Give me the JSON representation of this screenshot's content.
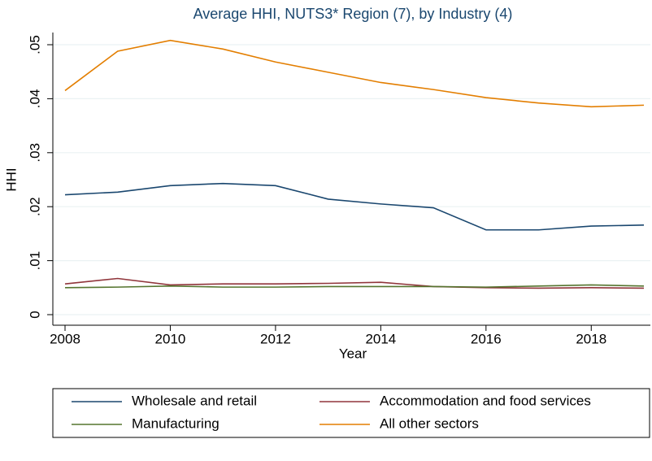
{
  "chart_data": {
    "type": "line",
    "title": "Average HHI, NUTS3* Region (7), by Industry (4)",
    "x_label": "Year",
    "y_label": "HHI",
    "x": [
      2008,
      2009,
      2010,
      2011,
      2012,
      2013,
      2014,
      2015,
      2016,
      2017,
      2018,
      2019
    ],
    "xlim": [
      2008,
      2019
    ],
    "xticks": [
      2008,
      2010,
      2012,
      2014,
      2016,
      2018
    ],
    "ylim": [
      0,
      0.05
    ],
    "yticks": [
      0,
      {
        "value": 0.01,
        "label": ".01"
      },
      {
        "value": 0.02,
        "label": ".02"
      },
      {
        "value": 0.03,
        "label": ".03"
      },
      {
        "value": 0.04,
        "label": ".04"
      },
      {
        "value": 0.05,
        "label": ".05"
      }
    ],
    "grid": true,
    "legend_position": "bottom",
    "series": [
      {
        "name": "Wholesale and retail",
        "color": "#1a476f",
        "values": [
          0.0222,
          0.0227,
          0.0239,
          0.0243,
          0.0239,
          0.0214,
          0.0205,
          0.0198,
          0.0157,
          0.0157,
          0.0164,
          0.0166
        ]
      },
      {
        "name": "Accommodation and food services",
        "color": "#90353b",
        "values": [
          0.0057,
          0.0067,
          0.0055,
          0.0057,
          0.0057,
          0.0058,
          0.006,
          0.0052,
          0.005,
          0.0049,
          0.005,
          0.0049
        ]
      },
      {
        "name": "Manufacturing",
        "color": "#55752f",
        "values": [
          0.005,
          0.0051,
          0.0053,
          0.0051,
          0.0051,
          0.0052,
          0.0052,
          0.0052,
          0.0051,
          0.0053,
          0.0055,
          0.0053
        ]
      },
      {
        "name": "All other sectors",
        "color": "#e37e00",
        "values": [
          0.0415,
          0.0488,
          0.0508,
          0.0492,
          0.0468,
          0.0449,
          0.043,
          0.0417,
          0.0402,
          0.0392,
          0.0385,
          0.0388
        ]
      }
    ]
  }
}
